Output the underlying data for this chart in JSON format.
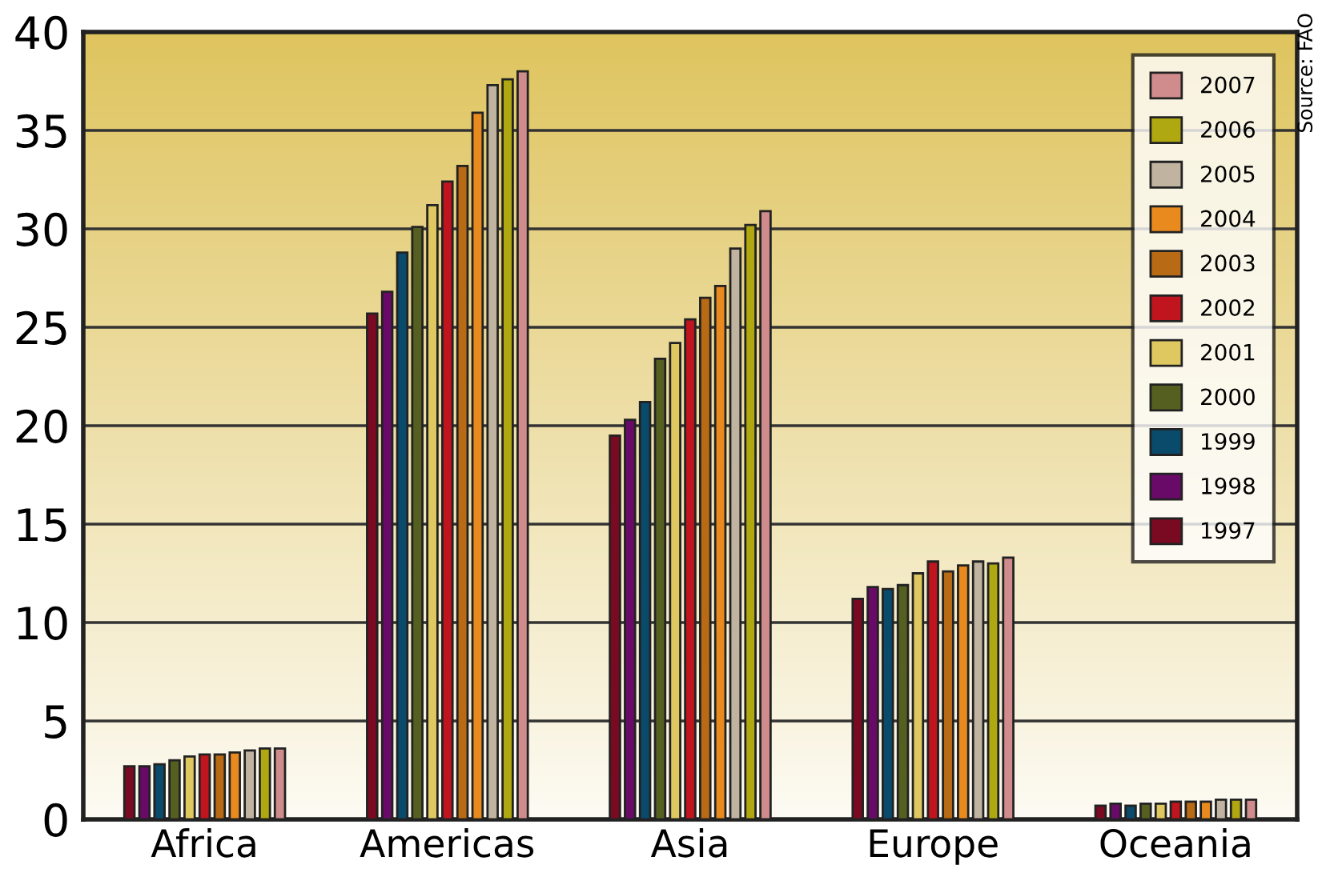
{
  "chart_data": {
    "type": "bar",
    "categories": [
      "Africa",
      "Americas",
      "Asia",
      "Europe",
      "Oceania"
    ],
    "series": [
      {
        "name": "1997",
        "color": "#7a0a22",
        "values": [
          2.7,
          25.7,
          19.5,
          11.2,
          0.7
        ]
      },
      {
        "name": "1998",
        "color": "#6a0a68",
        "values": [
          2.7,
          26.8,
          20.3,
          11.8,
          0.8
        ]
      },
      {
        "name": "1999",
        "color": "#0a4a6a",
        "values": [
          2.8,
          28.8,
          21.2,
          11.7,
          0.7
        ]
      },
      {
        "name": "2000",
        "color": "#556020",
        "values": [
          3.0,
          30.1,
          23.4,
          11.9,
          0.8
        ]
      },
      {
        "name": "2001",
        "color": "#e0c860",
        "values": [
          3.2,
          31.2,
          24.2,
          12.5,
          0.8
        ]
      },
      {
        "name": "2002",
        "color": "#c0141e",
        "values": [
          3.3,
          32.4,
          25.4,
          13.1,
          0.9
        ]
      },
      {
        "name": "2003",
        "color": "#b86a14",
        "values": [
          3.3,
          33.2,
          26.5,
          12.6,
          0.9
        ]
      },
      {
        "name": "2004",
        "color": "#e88a1e",
        "values": [
          3.4,
          35.9,
          27.1,
          12.9,
          0.9
        ]
      },
      {
        "name": "2005",
        "color": "#c0b4a0",
        "values": [
          3.5,
          37.3,
          29.0,
          13.1,
          1.0
        ]
      },
      {
        "name": "2006",
        "color": "#b0a810",
        "values": [
          3.6,
          37.6,
          30.2,
          13.0,
          1.0
        ]
      },
      {
        "name": "2007",
        "color": "#d08c8c",
        "values": [
          3.6,
          38.0,
          30.9,
          13.3,
          1.0
        ]
      }
    ],
    "ylim": [
      0,
      40
    ],
    "yticks": [
      0,
      5,
      10,
      15,
      20,
      25,
      30,
      35,
      40
    ],
    "grid": "y",
    "legend": "top right",
    "annotations": [
      "Source: FAO"
    ]
  }
}
